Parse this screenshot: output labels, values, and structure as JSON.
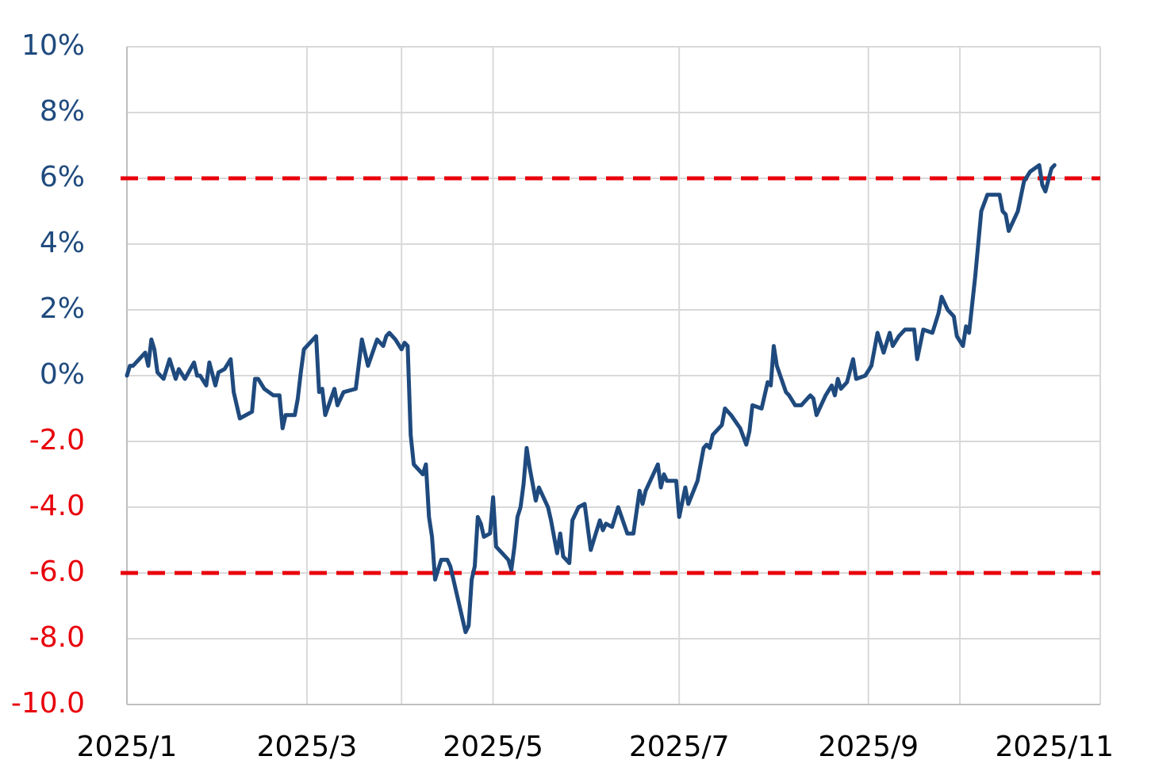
{
  "chart_data": {
    "type": "line",
    "x": [
      0,
      1,
      2,
      4,
      6,
      7,
      8,
      9,
      10,
      12,
      14,
      16,
      17,
      19,
      22,
      23,
      24,
      26,
      27,
      29,
      30,
      32,
      34,
      35,
      37,
      41,
      42,
      43,
      45,
      48,
      50,
      51,
      52,
      55,
      56,
      57,
      58,
      62,
      63,
      64,
      65,
      68,
      69,
      71,
      75,
      77,
      79,
      82,
      84,
      85,
      86,
      88,
      90,
      91,
      92,
      93,
      94,
      97,
      98,
      99,
      100,
      101,
      102,
      103,
      105,
      106,
      107,
      108,
      111,
      112,
      113,
      114,
      115,
      116,
      117,
      119,
      120,
      121,
      125,
      126,
      127,
      128,
      129,
      130,
      131,
      132,
      134,
      135,
      138,
      139,
      141,
      142,
      143,
      145,
      146,
      148,
      150,
      152,
      153,
      155,
      156,
      157,
      159,
      161,
      164,
      166,
      168,
      169,
      170,
      174,
      175,
      176,
      177,
      180,
      181,
      183,
      184,
      187,
      189,
      190,
      191,
      192,
      195,
      196,
      198,
      201,
      203,
      204,
      205,
      208,
      210,
      211,
      212,
      213,
      216,
      217,
      219,
      221,
      223,
      224,
      225,
      226,
      229,
      231,
      232,
      233,
      234,
      236,
      238,
      239,
      242,
      244,
      246,
      248,
      250,
      251,
      253,
      255,
      258,
      259,
      261,
      264,
      266,
      267,
      269,
      271,
      272,
      274,
      275,
      276,
      278,
      280,
      282,
      286,
      287,
      288,
      289,
      292,
      294,
      296,
      299,
      300,
      301,
      303,
      304
    ],
    "values": [
      0.0,
      0.3,
      0.3,
      0.5,
      0.7,
      0.3,
      1.1,
      0.8,
      0.1,
      -0.1,
      0.5,
      -0.1,
      0.2,
      -0.1,
      0.4,
      0.0,
      0.0,
      -0.3,
      0.4,
      -0.3,
      0.1,
      0.2,
      0.5,
      -0.5,
      -1.3,
      -1.1,
      -0.1,
      -0.1,
      -0.4,
      -0.6,
      -0.6,
      -1.6,
      -1.2,
      -1.2,
      -0.7,
      0.1,
      0.8,
      1.2,
      -0.5,
      -0.4,
      -1.2,
      -0.4,
      -0.9,
      -0.5,
      -0.4,
      1.1,
      0.3,
      1.1,
      0.9,
      1.2,
      1.3,
      1.1,
      0.8,
      1.0,
      0.9,
      -1.8,
      -2.7,
      -3.0,
      -2.7,
      -4.3,
      -4.9,
      -6.2,
      -5.9,
      -5.6,
      -5.6,
      -5.8,
      -6.2,
      -6.6,
      -7.8,
      -7.6,
      -6.2,
      -5.8,
      -4.3,
      -4.5,
      -4.9,
      -4.8,
      -3.7,
      -5.2,
      -5.6,
      -5.9,
      -5.2,
      -4.3,
      -4.0,
      -3.3,
      -2.2,
      -2.8,
      -3.8,
      -3.4,
      -4.0,
      -4.4,
      -5.4,
      -4.8,
      -5.5,
      -5.7,
      -4.4,
      -4.0,
      -3.9,
      -5.3,
      -5.0,
      -4.4,
      -4.7,
      -4.5,
      -4.6,
      -4.0,
      -4.8,
      -4.8,
      -3.5,
      -3.9,
      -3.5,
      -2.7,
      -3.4,
      -3.0,
      -3.2,
      -3.2,
      -4.3,
      -3.4,
      -3.9,
      -3.2,
      -2.2,
      -2.1,
      -2.2,
      -1.8,
      -1.5,
      -1.0,
      -1.2,
      -1.6,
      -2.1,
      -1.7,
      -0.9,
      -1.0,
      -0.2,
      -0.3,
      0.9,
      0.3,
      -0.5,
      -0.6,
      -0.9,
      -0.9,
      -0.7,
      -0.6,
      -0.7,
      -1.2,
      -0.6,
      -0.3,
      -0.6,
      -0.1,
      -0.4,
      -0.2,
      0.5,
      -0.1,
      0.0,
      0.3,
      1.3,
      0.7,
      1.3,
      0.9,
      1.2,
      1.4,
      1.4,
      0.5,
      1.4,
      1.3,
      1.9,
      2.4,
      2.0,
      1.8,
      1.2,
      0.9,
      1.5,
      1.3,
      3.0,
      5.0,
      5.5,
      5.5,
      5.0,
      4.9,
      4.4,
      5.0,
      5.9,
      6.2,
      6.4,
      5.8,
      5.6,
      6.3,
      6.4
    ],
    "color": "#1f4a7e",
    "xlim": [
      0,
      319
    ],
    "xticks": [
      {
        "value": 0,
        "label": "2025/1"
      },
      {
        "value": 59,
        "label": "2025/3"
      },
      {
        "value": 120,
        "label": "2025/5"
      },
      {
        "value": 181,
        "label": "2025/7"
      },
      {
        "value": 243,
        "label": "2025/9"
      },
      {
        "value": 304,
        "label": "2025/11"
      }
    ],
    "xgrid": [
      59,
      90,
      120,
      181,
      243,
      273
    ],
    "ylim": [
      -10,
      10
    ],
    "yticks": [
      {
        "value": 10,
        "label": "10%"
      },
      {
        "value": 8,
        "label": "8%"
      },
      {
        "value": 6,
        "label": "6%"
      },
      {
        "value": 4,
        "label": "4%"
      },
      {
        "value": 2,
        "label": "2%"
      },
      {
        "value": 0,
        "label": "0%"
      },
      {
        "value": -2,
        "label": "-2.0"
      },
      {
        "value": -4,
        "label": "-4.0"
      },
      {
        "value": -6,
        "label": "-6.0"
      },
      {
        "value": -8,
        "label": "-8.0"
      },
      {
        "value": -10,
        "label": "-10.0"
      }
    ],
    "tick_colors": {
      "nonnegative": "#1f4a7e",
      "negative": "#e8000b"
    },
    "grid": true,
    "reference_lines": [
      {
        "value": 6,
        "color": "#e8000b"
      },
      {
        "value": -6,
        "color": "#e8000b"
      }
    ]
  }
}
